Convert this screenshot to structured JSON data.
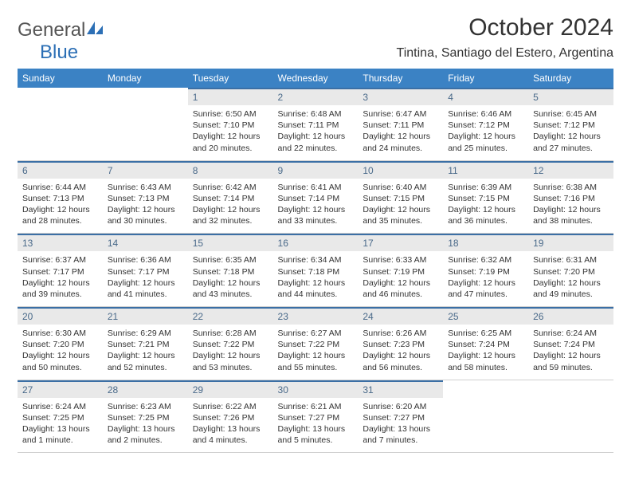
{
  "brand": {
    "part1": "General",
    "part2": "Blue"
  },
  "title": "October 2024",
  "location": "Tintina, Santiago del Estero, Argentina",
  "colors": {
    "header_bg": "#3b82c4",
    "header_text": "#ffffff",
    "daynum_bg": "#e9e9e9",
    "daynum_text": "#4a6a8a",
    "daynum_border": "#3b6fa5",
    "body_text": "#333333",
    "row_border": "#d0d0d0",
    "logo_gray": "#555555",
    "logo_blue": "#2c6fb5"
  },
  "typography": {
    "title_fontsize": 30,
    "location_fontsize": 16,
    "dayhead_fontsize": 12,
    "daynum_fontsize": 12,
    "body_fontsize": 10.5
  },
  "day_headers": [
    "Sunday",
    "Monday",
    "Tuesday",
    "Wednesday",
    "Thursday",
    "Friday",
    "Saturday"
  ],
  "weeks": [
    [
      {
        "empty": true
      },
      {
        "empty": true
      },
      {
        "num": "1",
        "sunrise": "Sunrise: 6:50 AM",
        "sunset": "Sunset: 7:10 PM",
        "daylight": "Daylight: 12 hours and 20 minutes."
      },
      {
        "num": "2",
        "sunrise": "Sunrise: 6:48 AM",
        "sunset": "Sunset: 7:11 PM",
        "daylight": "Daylight: 12 hours and 22 minutes."
      },
      {
        "num": "3",
        "sunrise": "Sunrise: 6:47 AM",
        "sunset": "Sunset: 7:11 PM",
        "daylight": "Daylight: 12 hours and 24 minutes."
      },
      {
        "num": "4",
        "sunrise": "Sunrise: 6:46 AM",
        "sunset": "Sunset: 7:12 PM",
        "daylight": "Daylight: 12 hours and 25 minutes."
      },
      {
        "num": "5",
        "sunrise": "Sunrise: 6:45 AM",
        "sunset": "Sunset: 7:12 PM",
        "daylight": "Daylight: 12 hours and 27 minutes."
      }
    ],
    [
      {
        "num": "6",
        "sunrise": "Sunrise: 6:44 AM",
        "sunset": "Sunset: 7:13 PM",
        "daylight": "Daylight: 12 hours and 28 minutes."
      },
      {
        "num": "7",
        "sunrise": "Sunrise: 6:43 AM",
        "sunset": "Sunset: 7:13 PM",
        "daylight": "Daylight: 12 hours and 30 minutes."
      },
      {
        "num": "8",
        "sunrise": "Sunrise: 6:42 AM",
        "sunset": "Sunset: 7:14 PM",
        "daylight": "Daylight: 12 hours and 32 minutes."
      },
      {
        "num": "9",
        "sunrise": "Sunrise: 6:41 AM",
        "sunset": "Sunset: 7:14 PM",
        "daylight": "Daylight: 12 hours and 33 minutes."
      },
      {
        "num": "10",
        "sunrise": "Sunrise: 6:40 AM",
        "sunset": "Sunset: 7:15 PM",
        "daylight": "Daylight: 12 hours and 35 minutes."
      },
      {
        "num": "11",
        "sunrise": "Sunrise: 6:39 AM",
        "sunset": "Sunset: 7:15 PM",
        "daylight": "Daylight: 12 hours and 36 minutes."
      },
      {
        "num": "12",
        "sunrise": "Sunrise: 6:38 AM",
        "sunset": "Sunset: 7:16 PM",
        "daylight": "Daylight: 12 hours and 38 minutes."
      }
    ],
    [
      {
        "num": "13",
        "sunrise": "Sunrise: 6:37 AM",
        "sunset": "Sunset: 7:17 PM",
        "daylight": "Daylight: 12 hours and 39 minutes."
      },
      {
        "num": "14",
        "sunrise": "Sunrise: 6:36 AM",
        "sunset": "Sunset: 7:17 PM",
        "daylight": "Daylight: 12 hours and 41 minutes."
      },
      {
        "num": "15",
        "sunrise": "Sunrise: 6:35 AM",
        "sunset": "Sunset: 7:18 PM",
        "daylight": "Daylight: 12 hours and 43 minutes."
      },
      {
        "num": "16",
        "sunrise": "Sunrise: 6:34 AM",
        "sunset": "Sunset: 7:18 PM",
        "daylight": "Daylight: 12 hours and 44 minutes."
      },
      {
        "num": "17",
        "sunrise": "Sunrise: 6:33 AM",
        "sunset": "Sunset: 7:19 PM",
        "daylight": "Daylight: 12 hours and 46 minutes."
      },
      {
        "num": "18",
        "sunrise": "Sunrise: 6:32 AM",
        "sunset": "Sunset: 7:19 PM",
        "daylight": "Daylight: 12 hours and 47 minutes."
      },
      {
        "num": "19",
        "sunrise": "Sunrise: 6:31 AM",
        "sunset": "Sunset: 7:20 PM",
        "daylight": "Daylight: 12 hours and 49 minutes."
      }
    ],
    [
      {
        "num": "20",
        "sunrise": "Sunrise: 6:30 AM",
        "sunset": "Sunset: 7:20 PM",
        "daylight": "Daylight: 12 hours and 50 minutes."
      },
      {
        "num": "21",
        "sunrise": "Sunrise: 6:29 AM",
        "sunset": "Sunset: 7:21 PM",
        "daylight": "Daylight: 12 hours and 52 minutes."
      },
      {
        "num": "22",
        "sunrise": "Sunrise: 6:28 AM",
        "sunset": "Sunset: 7:22 PM",
        "daylight": "Daylight: 12 hours and 53 minutes."
      },
      {
        "num": "23",
        "sunrise": "Sunrise: 6:27 AM",
        "sunset": "Sunset: 7:22 PM",
        "daylight": "Daylight: 12 hours and 55 minutes."
      },
      {
        "num": "24",
        "sunrise": "Sunrise: 6:26 AM",
        "sunset": "Sunset: 7:23 PM",
        "daylight": "Daylight: 12 hours and 56 minutes."
      },
      {
        "num": "25",
        "sunrise": "Sunrise: 6:25 AM",
        "sunset": "Sunset: 7:24 PM",
        "daylight": "Daylight: 12 hours and 58 minutes."
      },
      {
        "num": "26",
        "sunrise": "Sunrise: 6:24 AM",
        "sunset": "Sunset: 7:24 PM",
        "daylight": "Daylight: 12 hours and 59 minutes."
      }
    ],
    [
      {
        "num": "27",
        "sunrise": "Sunrise: 6:24 AM",
        "sunset": "Sunset: 7:25 PM",
        "daylight": "Daylight: 13 hours and 1 minute."
      },
      {
        "num": "28",
        "sunrise": "Sunrise: 6:23 AM",
        "sunset": "Sunset: 7:25 PM",
        "daylight": "Daylight: 13 hours and 2 minutes."
      },
      {
        "num": "29",
        "sunrise": "Sunrise: 6:22 AM",
        "sunset": "Sunset: 7:26 PM",
        "daylight": "Daylight: 13 hours and 4 minutes."
      },
      {
        "num": "30",
        "sunrise": "Sunrise: 6:21 AM",
        "sunset": "Sunset: 7:27 PM",
        "daylight": "Daylight: 13 hours and 5 minutes."
      },
      {
        "num": "31",
        "sunrise": "Sunrise: 6:20 AM",
        "sunset": "Sunset: 7:27 PM",
        "daylight": "Daylight: 13 hours and 7 minutes."
      },
      {
        "empty": true
      },
      {
        "empty": true
      }
    ]
  ]
}
